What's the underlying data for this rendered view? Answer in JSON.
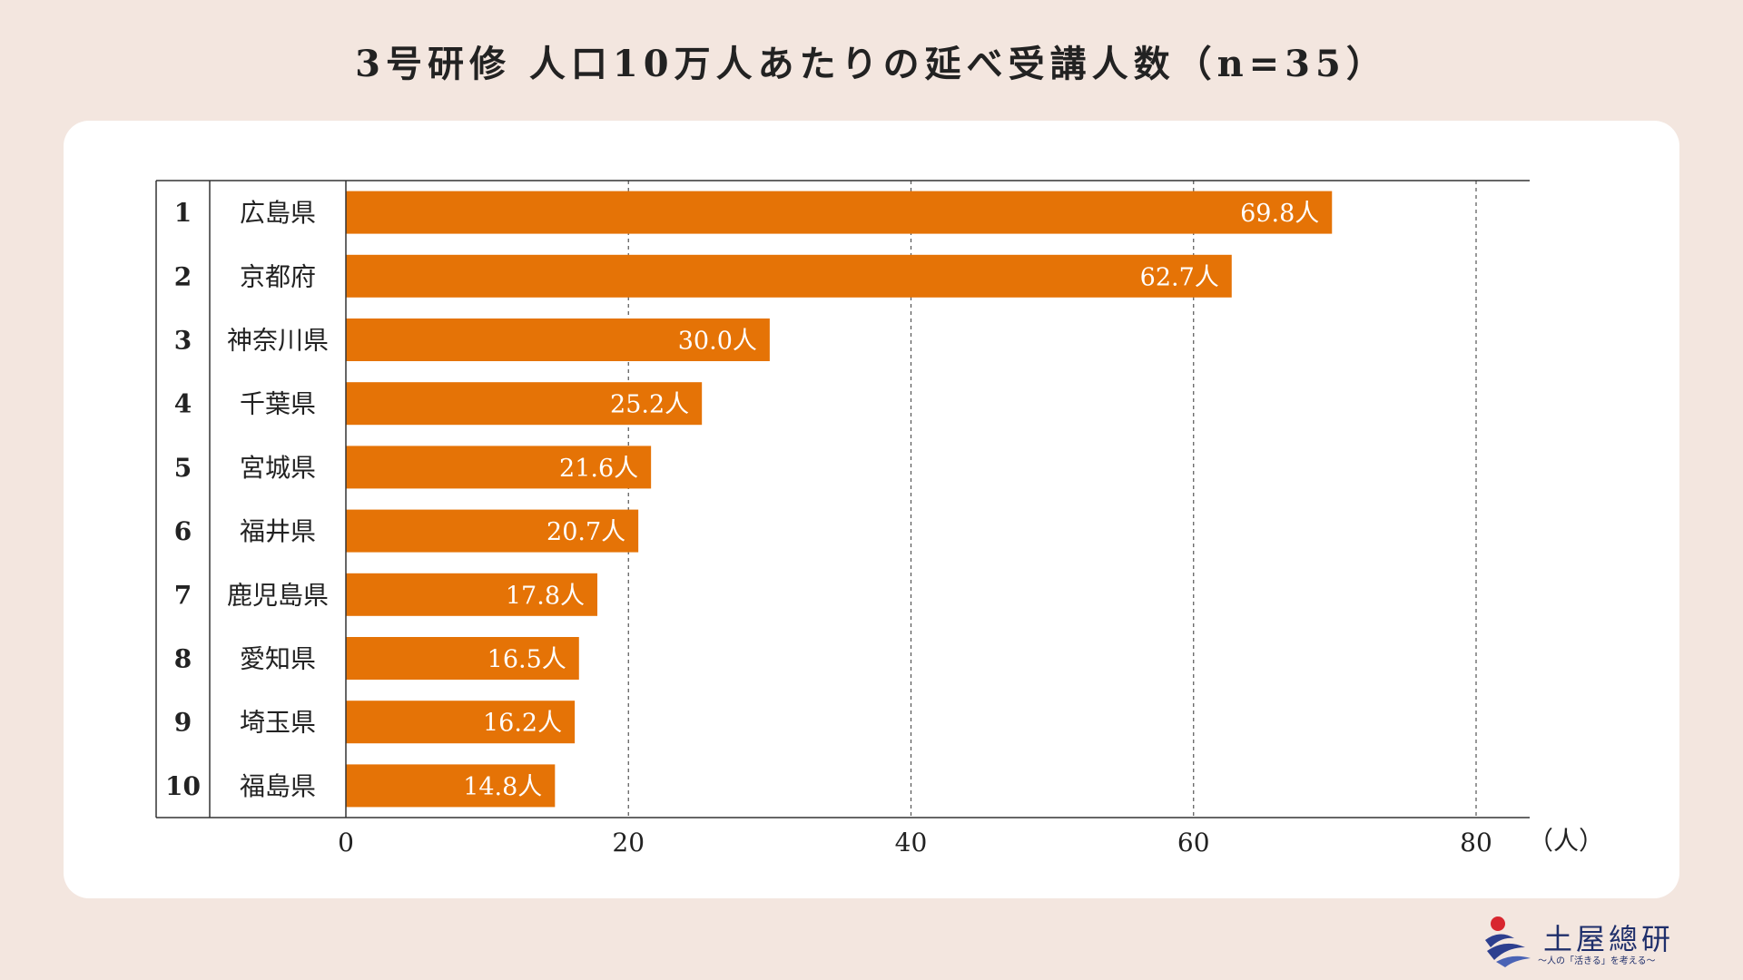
{
  "title": "3号研修 人口10万人あたりの延べ受講人数（n=35）",
  "chart_data": {
    "type": "bar",
    "orientation": "horizontal",
    "title": "3号研修 人口10万人あたりの延べ受講人数（n=35）",
    "ranks": [
      "1",
      "2",
      "3",
      "4",
      "5",
      "6",
      "7",
      "8",
      "9",
      "10"
    ],
    "categories": [
      "広島県",
      "京都府",
      "神奈川県",
      "千葉県",
      "宮城県",
      "福井県",
      "鹿児島県",
      "愛知県",
      "埼玉県",
      "福島県"
    ],
    "values": [
      69.8,
      62.7,
      30.0,
      25.2,
      21.6,
      20.7,
      17.8,
      16.5,
      16.2,
      14.8
    ],
    "labels": [
      "69.8人",
      "62.7人",
      "30.0人",
      "25.2人",
      "21.6人",
      "20.7人",
      "17.8人",
      "16.5人",
      "16.2人",
      "14.8人"
    ],
    "xlim": [
      0,
      84
    ],
    "xticks": [
      0,
      20,
      40,
      60,
      80
    ],
    "xlabel": "（人）",
    "grid": "vertical-dashed",
    "bar_color": "#e57306"
  },
  "logo": {
    "name": "土屋總研",
    "tagline": "〜人の「活きる」を考える〜"
  }
}
